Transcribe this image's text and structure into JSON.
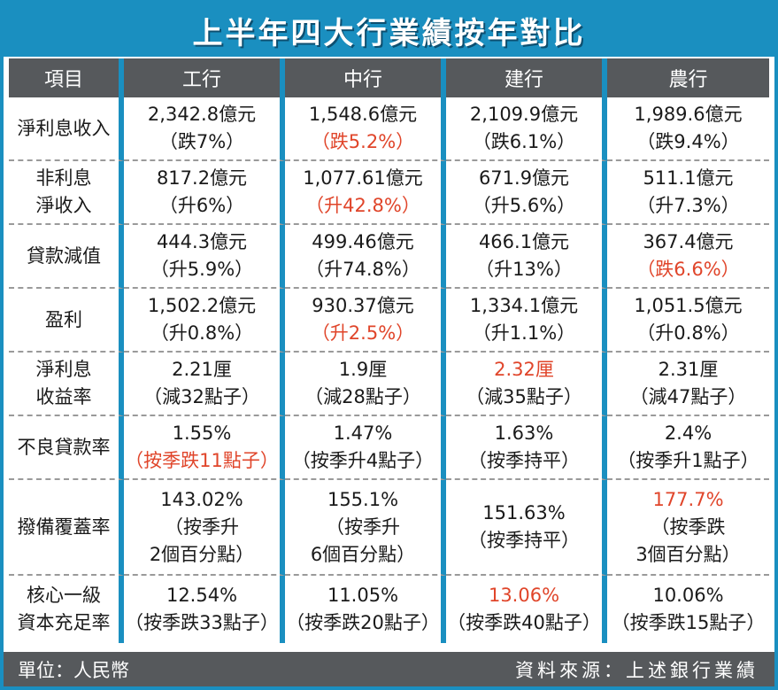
{
  "title": "上半年四大行業績按年對比",
  "colors": {
    "frame": "#1a8fc0",
    "header_bg": "#56595c",
    "highlight": "#e0452a"
  },
  "headers": [
    "項目",
    "工行",
    "中行",
    "建行",
    "農行"
  ],
  "rows": [
    {
      "label": [
        "淨利息收入"
      ],
      "cells": [
        {
          "value": "2,342.8億元",
          "note": [
            "（跌7%）"
          ],
          "value_red": false,
          "note_red": false
        },
        {
          "value": "1,548.6億元",
          "note": [
            "（跌5.2%）"
          ],
          "value_red": false,
          "note_red": true
        },
        {
          "value": "2,109.9億元",
          "note": [
            "（跌6.1%）"
          ],
          "value_red": false,
          "note_red": false
        },
        {
          "value": "1,989.6億元",
          "note": [
            "（跌9.4%）"
          ],
          "value_red": false,
          "note_red": false
        }
      ]
    },
    {
      "label": [
        "非利息",
        "淨收入"
      ],
      "cells": [
        {
          "value": "817.2億元",
          "note": [
            "（升6%）"
          ],
          "value_red": false,
          "note_red": false
        },
        {
          "value": "1,077.61億元",
          "note": [
            "（升42.8%）"
          ],
          "value_red": false,
          "note_red": true
        },
        {
          "value": "671.9億元",
          "note": [
            "（升5.6%）"
          ],
          "value_red": false,
          "note_red": false
        },
        {
          "value": "511.1億元",
          "note": [
            "（升7.3%）"
          ],
          "value_red": false,
          "note_red": false
        }
      ]
    },
    {
      "label": [
        "貸款減值"
      ],
      "cells": [
        {
          "value": "444.3億元",
          "note": [
            "（升5.9%）"
          ],
          "value_red": false,
          "note_red": false
        },
        {
          "value": "499.46億元",
          "note": [
            "（升74.8%）"
          ],
          "value_red": false,
          "note_red": false
        },
        {
          "value": "466.1億元",
          "note": [
            "（升13%）"
          ],
          "value_red": false,
          "note_red": false
        },
        {
          "value": "367.4億元",
          "note": [
            "（跌6.6%）"
          ],
          "value_red": false,
          "note_red": true
        }
      ]
    },
    {
      "label": [
        "盈利"
      ],
      "cells": [
        {
          "value": "1,502.2億元",
          "note": [
            "（升0.8%）"
          ],
          "value_red": false,
          "note_red": false
        },
        {
          "value": "930.37億元",
          "note": [
            "（升2.5%）"
          ],
          "value_red": false,
          "note_red": true
        },
        {
          "value": "1,334.1億元",
          "note": [
            "（升1.1%）"
          ],
          "value_red": false,
          "note_red": false
        },
        {
          "value": "1,051.5億元",
          "note": [
            "（升0.8%）"
          ],
          "value_red": false,
          "note_red": false
        }
      ]
    },
    {
      "label": [
        "淨利息",
        "收益率"
      ],
      "cells": [
        {
          "value": "2.21厘",
          "note": [
            "（減32點子）"
          ],
          "value_red": false,
          "note_red": false
        },
        {
          "value": "1.9厘",
          "note": [
            "（減28點子）"
          ],
          "value_red": false,
          "note_red": false
        },
        {
          "value": "2.32厘",
          "note": [
            "（減35點子）"
          ],
          "value_red": true,
          "note_red": false
        },
        {
          "value": "2.31厘",
          "note": [
            "（減47點子）"
          ],
          "value_red": false,
          "note_red": false
        }
      ]
    },
    {
      "label": [
        "不良貸款率"
      ],
      "cells": [
        {
          "value": "1.55%",
          "note": [
            "（按季跌11點子）"
          ],
          "value_red": false,
          "note_red": true
        },
        {
          "value": "1.47%",
          "note": [
            "（按季升4點子）"
          ],
          "value_red": false,
          "note_red": false
        },
        {
          "value": "1.63%",
          "note": [
            "（按季持平）"
          ],
          "value_red": false,
          "note_red": false
        },
        {
          "value": "2.4%",
          "note": [
            "（按季升1點子）"
          ],
          "value_red": false,
          "note_red": false
        }
      ]
    },
    {
      "label": [
        "撥備覆蓋率"
      ],
      "cells": [
        {
          "value": "143.02%",
          "note": [
            "（按季升",
            "2個百分點）"
          ],
          "value_red": false,
          "note_red": false
        },
        {
          "value": "155.1%",
          "note": [
            "（按季升",
            "6個百分點）"
          ],
          "value_red": false,
          "note_red": false
        },
        {
          "value": "151.63%",
          "note": [
            "（按季持平）"
          ],
          "value_red": false,
          "note_red": false
        },
        {
          "value": "177.7%",
          "note": [
            "（按季跌",
            "3個百分點）"
          ],
          "value_red": true,
          "note_red": false
        }
      ]
    },
    {
      "label": [
        "核心一級",
        "資本充足率"
      ],
      "cells": [
        {
          "value": "12.54%",
          "note": [
            "（按季跌33點子）"
          ],
          "value_red": false,
          "note_red": false
        },
        {
          "value": "11.05%",
          "note": [
            "（按季跌20點子）"
          ],
          "value_red": false,
          "note_red": false
        },
        {
          "value": "13.06%",
          "note": [
            "（按季跌40點子）"
          ],
          "value_red": true,
          "note_red": false
        },
        {
          "value": "10.06%",
          "note": [
            "（按季跌15點子）"
          ],
          "value_red": false,
          "note_red": false
        }
      ]
    }
  ],
  "footer": {
    "unit": "單位：人民幣",
    "source": "資料來源：上述銀行業績"
  }
}
